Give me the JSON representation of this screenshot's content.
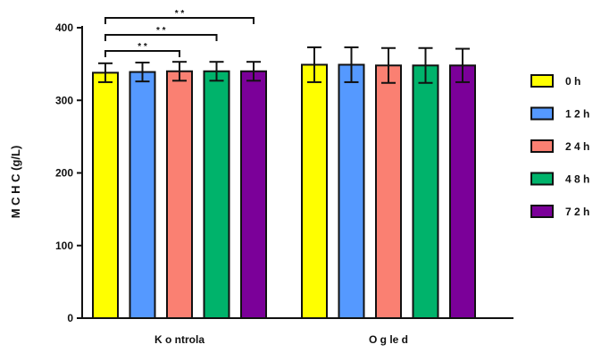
{
  "chart_data": {
    "type": "bar",
    "ylabel": "M C H C  (g/L)",
    "ylim": [
      0,
      400
    ],
    "yticks": [
      "0",
      "100",
      "200",
      "300",
      "400"
    ],
    "categories": [
      "K o ntrola",
      "O g le d"
    ],
    "series": [
      {
        "name": "0 h",
        "color": "#ffff00",
        "values": [
          338,
          349
        ],
        "errors": [
          13,
          24
        ]
      },
      {
        "name": "1 2 h",
        "color": "#5599ff",
        "values": [
          339,
          349
        ],
        "errors": [
          13,
          24
        ]
      },
      {
        "name": "2 4 h",
        "color": "#fa8072",
        "values": [
          340,
          348
        ],
        "errors": [
          13,
          24
        ]
      },
      {
        "name": "4 8 h",
        "color": "#00b36b",
        "values": [
          340,
          348
        ],
        "errors": [
          13,
          24
        ]
      },
      {
        "name": "7 2 h",
        "color": "#7b0099",
        "values": [
          340,
          348
        ],
        "errors": [
          13,
          23
        ]
      }
    ],
    "annotations": [
      {
        "label": "* *",
        "from_series": 0,
        "to_series": 4,
        "category": 0
      },
      {
        "label": "* *",
        "from_series": 0,
        "to_series": 3,
        "category": 0
      },
      {
        "label": "* *",
        "from_series": 0,
        "to_series": 2,
        "category": 0
      }
    ],
    "legend_position": "right",
    "grid": false
  }
}
